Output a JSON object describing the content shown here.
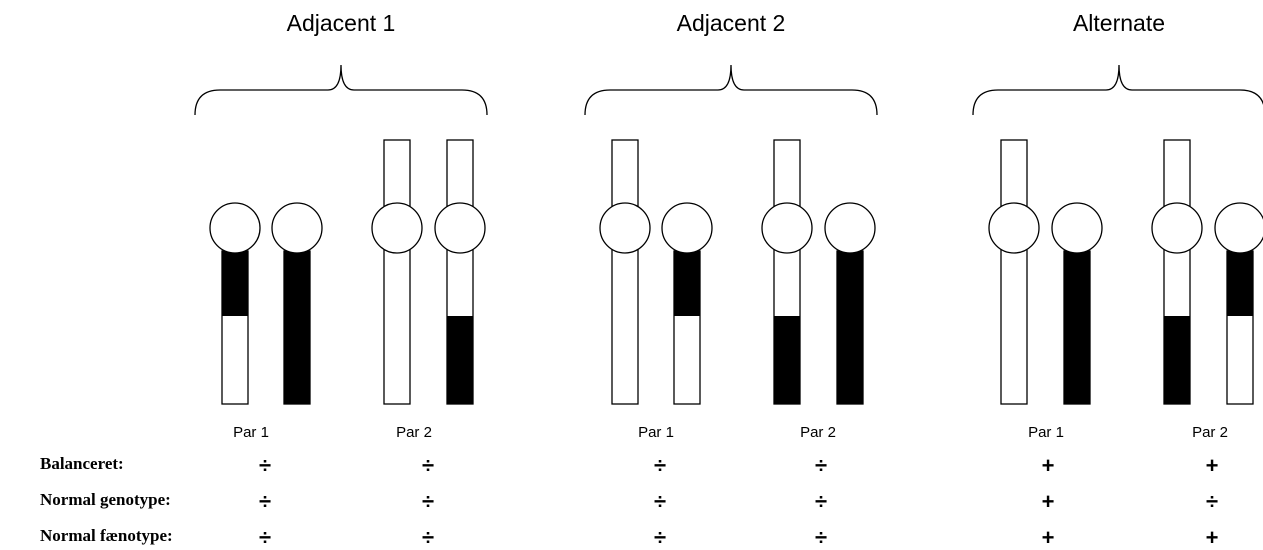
{
  "groups": [
    {
      "title": "Adjacent 1",
      "pairs": [
        "Par 1",
        "Par 2"
      ]
    },
    {
      "title": "Adjacent 2",
      "pairs": [
        "Par 1",
        "Par 2"
      ]
    },
    {
      "title": "Alternate",
      "pairs": [
        "Par 1",
        "Par 2"
      ]
    }
  ],
  "rows": [
    {
      "label": "Balanceret:",
      "values": [
        "÷",
        "÷",
        "÷",
        "÷",
        "+",
        "+"
      ]
    },
    {
      "label": "Normal genotype:",
      "values": [
        "÷",
        "÷",
        "÷",
        "÷",
        "+",
        "÷"
      ]
    },
    {
      "label": "Normal fænotype:",
      "values": [
        "÷",
        "÷",
        "÷",
        "÷",
        "+",
        "+"
      ]
    }
  ]
}
